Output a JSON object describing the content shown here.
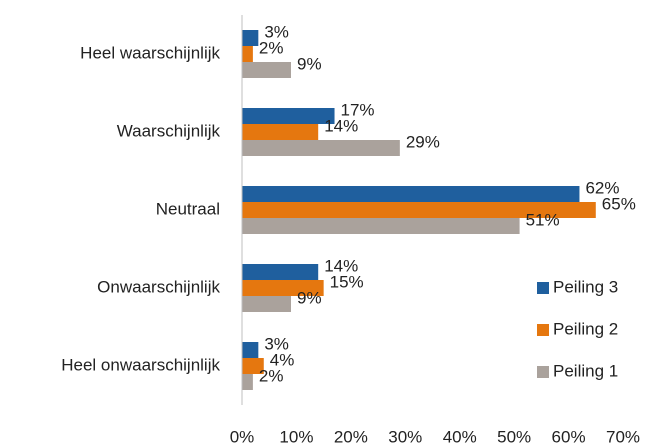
{
  "chart_data": {
    "type": "bar",
    "orientation": "horizontal",
    "categories": [
      "Heel waarschijnlijk",
      "Waarschijnlijk",
      "Neutraal",
      "Onwaarschijnlijk",
      "Heel onwaarschijnlijk"
    ],
    "series": [
      {
        "name": "Peiling 3",
        "color": "#1f5f9e",
        "values": [
          3,
          17,
          62,
          14,
          3
        ],
        "value_labels": [
          "3%",
          "17%",
          "62%",
          "14%",
          "3%"
        ]
      },
      {
        "name": "Peiling 2",
        "color": "#e5770f",
        "values": [
          2,
          14,
          65,
          15,
          4
        ],
        "value_labels": [
          "2%",
          "14%",
          "65%",
          "15%",
          "4%"
        ]
      },
      {
        "name": "Peiling 1",
        "color": "#aaa29c",
        "values": [
          9,
          29,
          51,
          9,
          2
        ],
        "value_labels": [
          "9%",
          "29%",
          "51%",
          "9%",
          "2%"
        ]
      }
    ],
    "xlim": [
      0,
      70
    ],
    "xticks": [
      {
        "value": 0,
        "label": "0%"
      },
      {
        "value": 10,
        "label": "10%"
      },
      {
        "value": 20,
        "label": "20%"
      },
      {
        "value": 30,
        "label": "30%"
      },
      {
        "value": 40,
        "label": "40%"
      },
      {
        "value": 50,
        "label": "50%"
      },
      {
        "value": 60,
        "label": "60%"
      },
      {
        "value": 70,
        "label": "70%"
      }
    ],
    "grid": false,
    "legend": "lower right"
  }
}
